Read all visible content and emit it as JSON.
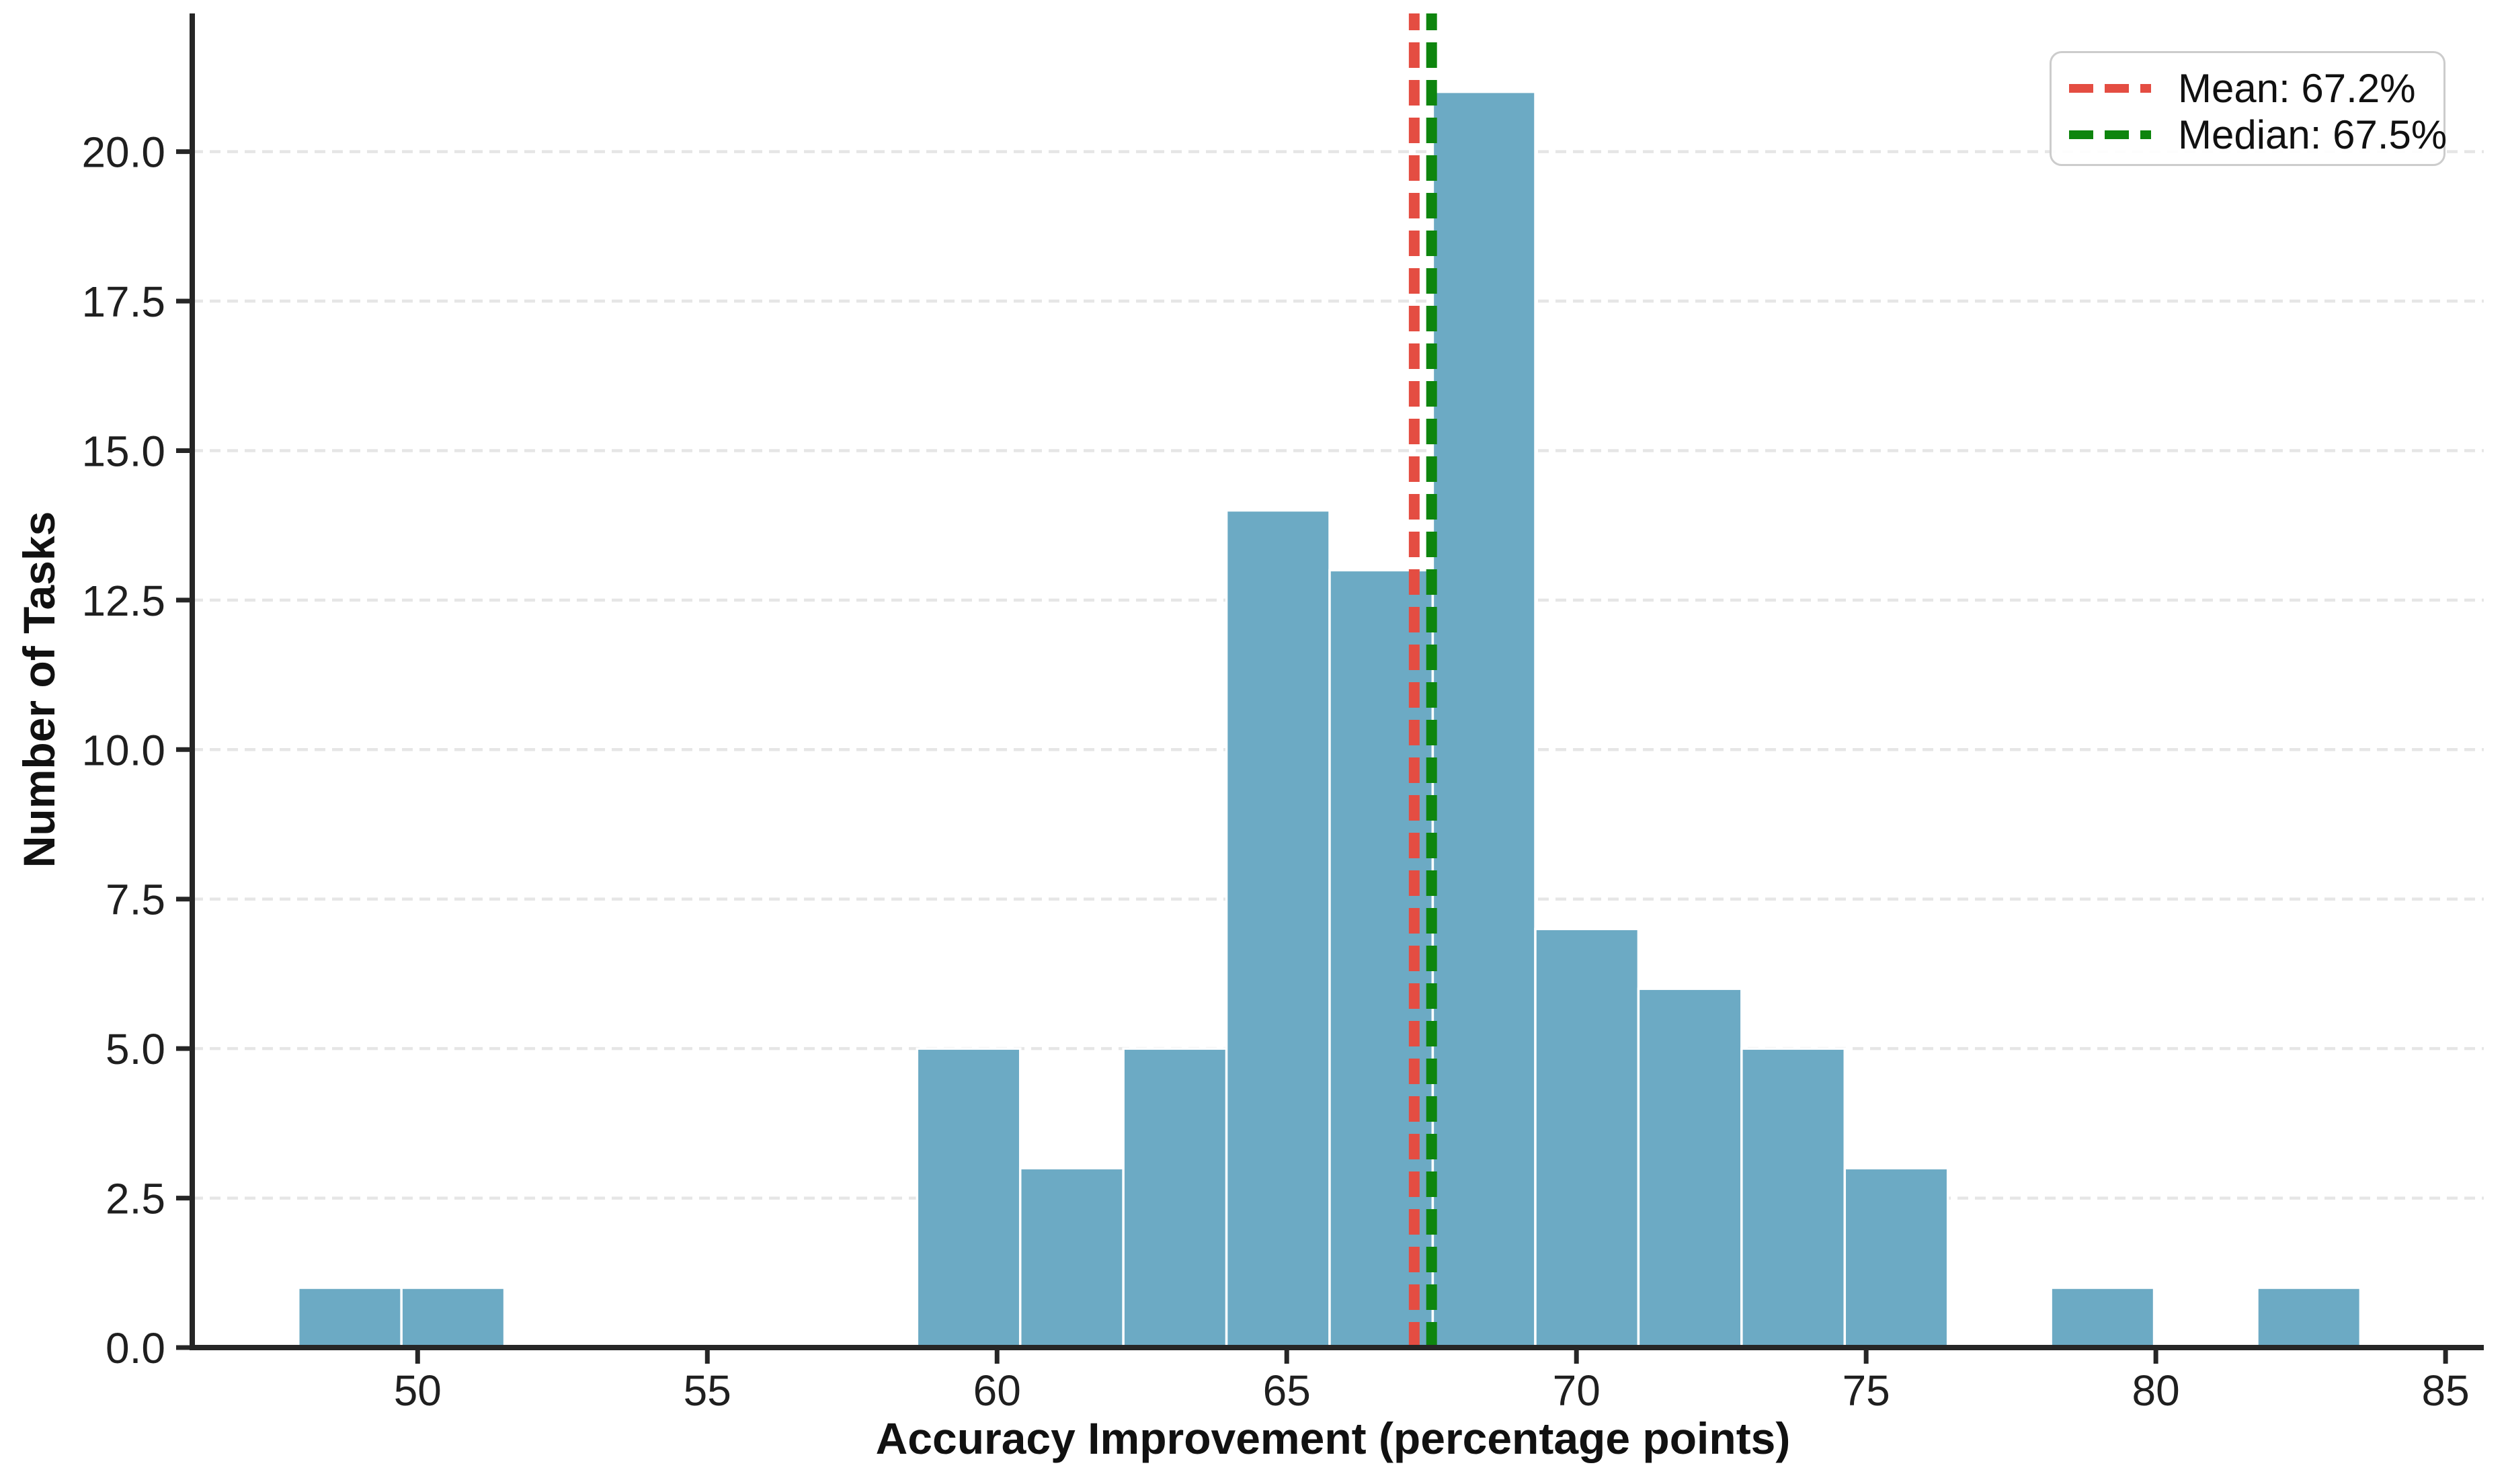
{
  "chart_data": {
    "type": "bar",
    "subtype": "histogram",
    "title": "",
    "xlabel": "Accuracy Improvement (percentage points)",
    "ylabel": "Number of Tasks",
    "bin_edges": [
      47.94,
      49.72,
      51.5,
      53.28,
      55.06,
      56.84,
      58.62,
      60.4,
      62.18,
      63.96,
      65.74,
      67.52,
      69.29,
      71.07,
      72.85,
      74.63,
      76.41,
      78.19,
      79.97,
      81.75,
      83.53
    ],
    "counts": [
      1,
      1,
      0,
      0,
      0,
      0,
      5,
      3,
      5,
      14,
      13,
      21,
      7,
      6,
      5,
      3,
      0,
      1,
      0,
      1
    ],
    "mean": 67.2,
    "median": 67.5,
    "xlim": [
      46.11,
      85.66
    ],
    "ylim": [
      0,
      22.03
    ],
    "x_ticks": [
      50,
      55,
      60,
      65,
      70,
      75,
      80,
      85
    ],
    "y_ticks": [
      0.0,
      2.5,
      5.0,
      7.5,
      10.0,
      12.5,
      15.0,
      17.5,
      20.0
    ],
    "grid": "horizontal-dashed",
    "legend": {
      "position": "upper-right",
      "entries": [
        {
          "label": "Mean: 67.2%",
          "color": "#e44d42",
          "style": "dashed"
        },
        {
          "label": "Median: 67.5%",
          "color": "#0e850e",
          "style": "dashed"
        }
      ]
    },
    "colors": {
      "bar_fill": "#6caac4",
      "bar_edge": "#ffffff",
      "mean_line": "#e44d42",
      "median_line": "#0e850e",
      "grid_line": "#e6e6e6",
      "axis": "#262626",
      "tick_text": "#1f1f1f"
    }
  }
}
